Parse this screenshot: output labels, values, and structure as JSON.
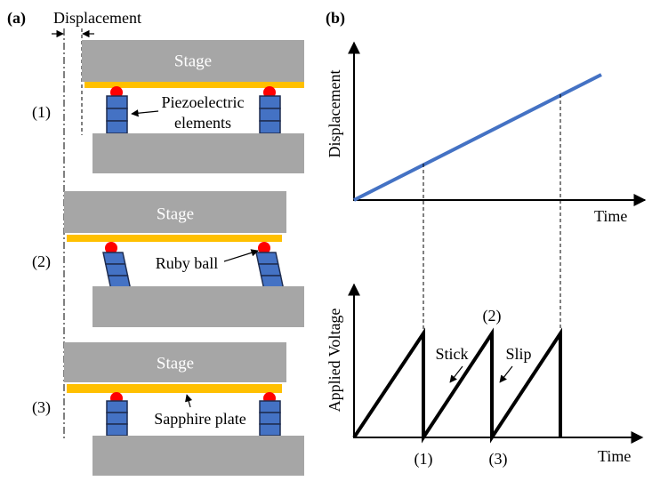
{
  "panel_a": {
    "label": "(a)",
    "displacement_label": "Displacement",
    "states": [
      {
        "label": "(1)",
        "stage": "Stage"
      },
      {
        "label": "(2)",
        "stage": "Stage"
      },
      {
        "label": "(3)",
        "stage": "Stage"
      }
    ],
    "annotations": {
      "piezo": [
        "Piezoelectric",
        "elements"
      ],
      "ruby": "Ruby ball",
      "sapphire": "Sapphire plate"
    }
  },
  "panel_b": {
    "label": "(b)",
    "top": {
      "y_label": "Displacement",
      "x_label": "Time"
    },
    "bottom": {
      "y_label": "Applied Voltage",
      "x_label": "Time",
      "markers": [
        "(1)",
        "(2)",
        "(3)"
      ],
      "stick": "Stick",
      "slip": "Slip"
    }
  }
}
